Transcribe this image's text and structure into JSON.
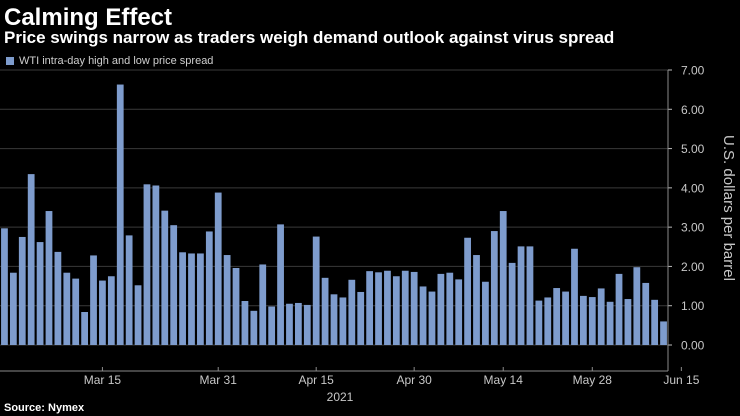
{
  "title": "Calming Effect",
  "subtitle": "Price swings narrow as traders weigh demand outlook against virus spread",
  "source": "Source: Nymex",
  "colors": {
    "bar": "#7e9ccd",
    "background": "#000000",
    "grid": "#3a3a3a",
    "text": "#c8c8c8"
  },
  "chart_data": {
    "type": "bar",
    "title": "Calming Effect",
    "ylabel": "U.S. dollars per barrel",
    "xlabel": "",
    "ylim": [
      0,
      7
    ],
    "y_side": "right",
    "y_ticks": [
      "0.00",
      "1.00",
      "2.00",
      "3.00",
      "4.00",
      "5.00",
      "6.00",
      "7.00"
    ],
    "x_tick_labels": [
      {
        "label": "Mar 15",
        "at_bar": 11
      },
      {
        "label": "Mar 31",
        "at_bar": 24
      },
      {
        "label": "Apr 15",
        "at_bar": 35
      },
      {
        "label": "Apr 30",
        "at_bar": 46
      },
      {
        "label": "May 14",
        "at_bar": 56
      },
      {
        "label": "May 28",
        "at_bar": 66
      },
      {
        "label": "Jun 15",
        "at_bar": 76
      }
    ],
    "year_label": "2021",
    "series": [
      {
        "name": "WTI intra-day high and low price spread",
        "values": [
          2.97,
          1.84,
          2.75,
          4.35,
          2.62,
          3.41,
          2.37,
          1.84,
          1.69,
          0.84,
          2.28,
          1.64,
          1.75,
          6.63,
          2.79,
          1.52,
          4.09,
          4.06,
          3.42,
          3.05,
          2.36,
          2.33,
          2.33,
          2.89,
          3.88,
          2.29,
          1.96,
          1.12,
          0.87,
          2.05,
          0.98,
          3.07,
          1.05,
          1.07,
          1.02,
          2.76,
          1.71,
          1.29,
          1.21,
          1.66,
          1.35,
          1.88,
          1.85,
          1.89,
          1.75,
          1.89,
          1.86,
          1.49,
          1.36,
          1.81,
          1.84,
          1.67,
          2.73,
          2.29,
          1.61,
          2.9,
          3.41,
          2.09,
          2.51,
          2.51,
          1.13,
          1.21,
          1.45,
          1.36,
          2.45,
          1.25,
          1.22,
          1.44,
          1.1,
          1.81,
          1.17,
          1.98,
          1.58,
          1.15,
          0.6
        ]
      }
    ]
  }
}
